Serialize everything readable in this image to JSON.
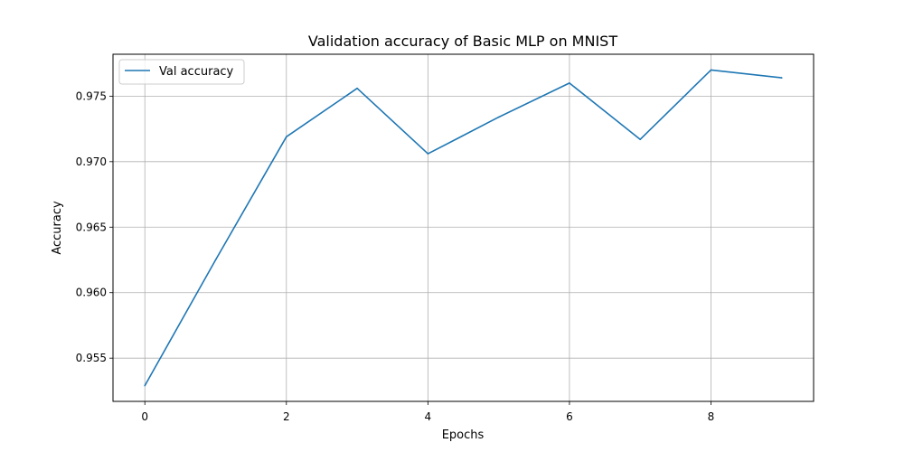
{
  "chart_data": {
    "type": "line",
    "title": "Validation accuracy of Basic MLP on MNIST",
    "xlabel": "Epochs",
    "ylabel": "Accuracy",
    "xlim": [
      -0.45,
      9.45
    ],
    "ylim": [
      0.9517,
      0.9782
    ],
    "xticks": [
      0,
      2,
      4,
      6,
      8
    ],
    "xtick_labels": [
      "0",
      "2",
      "4",
      "6",
      "8"
    ],
    "yticks": [
      0.955,
      0.96,
      0.965,
      0.97,
      0.975
    ],
    "ytick_labels": [
      "0.955",
      "0.960",
      "0.965",
      "0.970",
      "0.975"
    ],
    "grid": true,
    "legend_position": "top-left",
    "series": [
      {
        "name": "Val accuracy",
        "color": "#1f77b4",
        "x": [
          0,
          1,
          2,
          3,
          4,
          5,
          6,
          7,
          8,
          9
        ],
        "y": [
          0.9529,
          0.9625,
          0.9719,
          0.9756,
          0.9706,
          0.9734,
          0.976,
          0.9717,
          0.977,
          0.9764
        ]
      }
    ]
  }
}
